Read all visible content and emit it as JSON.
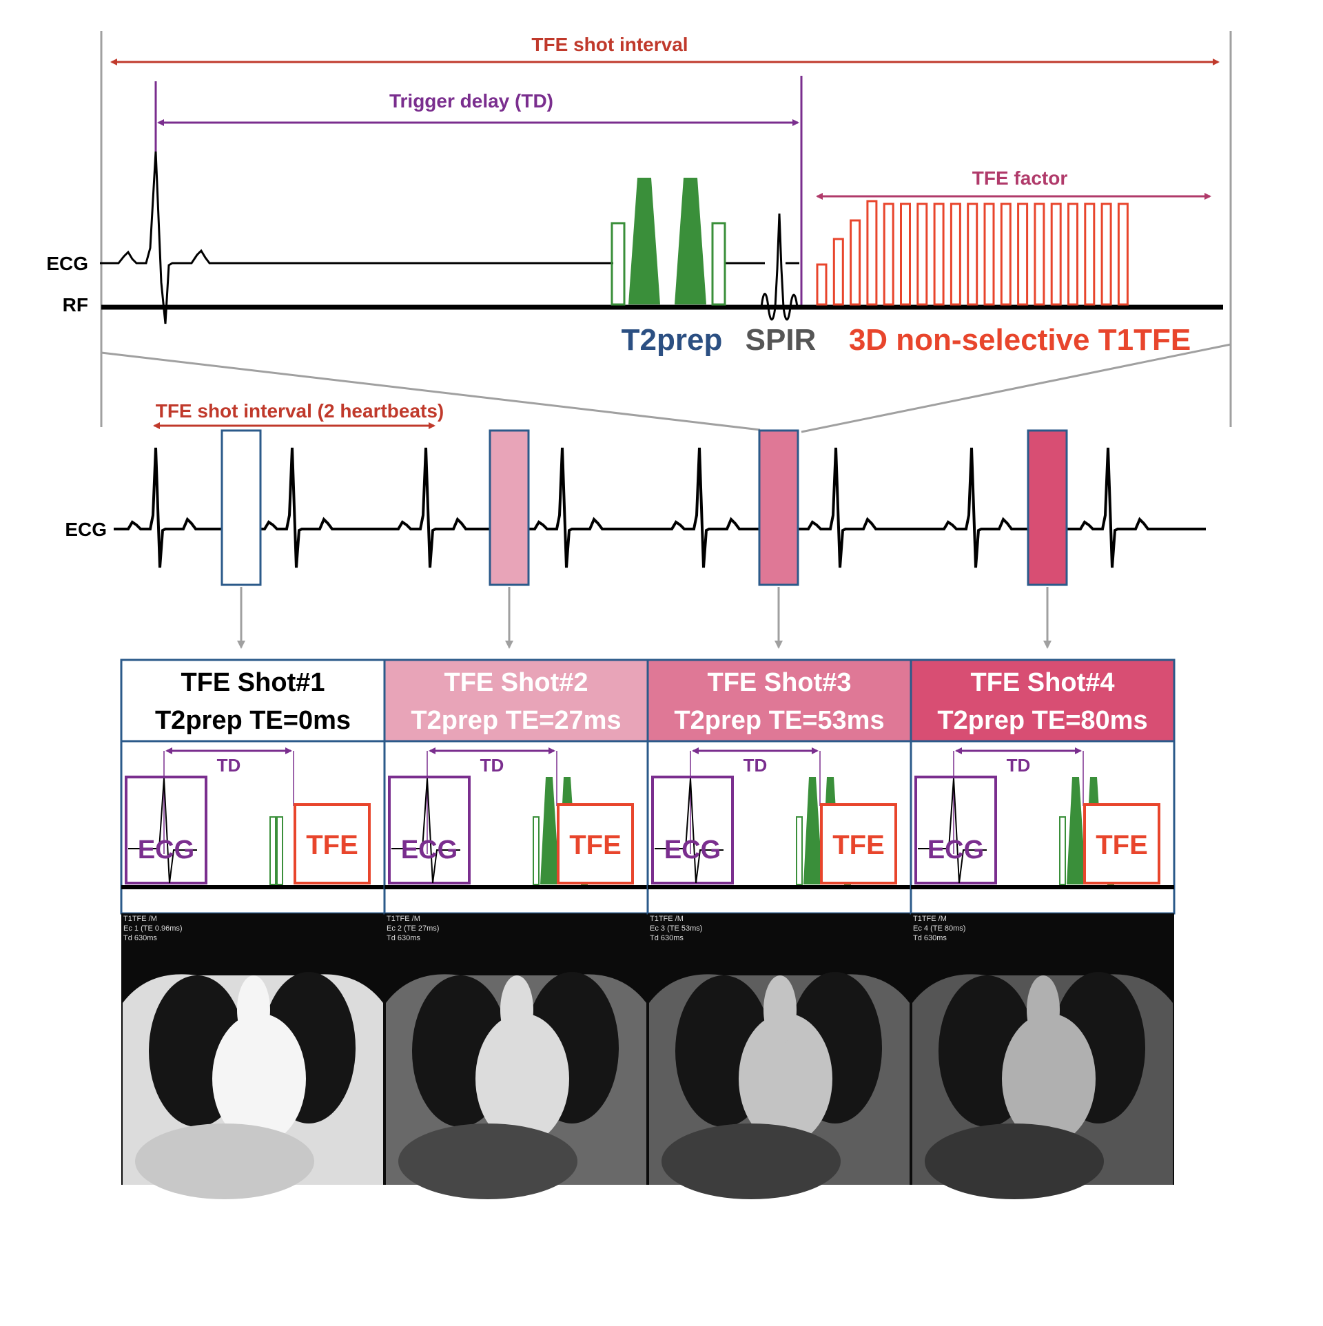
{
  "colors": {
    "interval_red": "#c0392b",
    "td_purple": "#7a2e8e",
    "factor_pink": "#b03a6a",
    "t2prep_green": "#3a8f3a",
    "t2prep_text": "#2b4f82",
    "spir_text": "#555555",
    "tfe_red": "#e8452c",
    "box_border": "#2b5a8a",
    "shot1_fill": "#ffffff",
    "shot2_fill": "#e8a4b8",
    "shot3_fill": "#df7896",
    "shot4_fill": "#d84e73",
    "gray_line": "#a0a0a0"
  },
  "top_diagram": {
    "shot_interval_label": "TFE shot interval",
    "trigger_delay_label": "Trigger delay (TD)",
    "tfe_factor_label": "TFE factor",
    "ecg_label": "ECG",
    "rf_label": "RF",
    "t2prep_label": "T2prep",
    "spir_label": "SPIR",
    "t1tfe_label": "3D non-selective T1TFE"
  },
  "middle_diagram": {
    "shot_interval_label": "TFE shot interval (2 heartbeats)",
    "ecg_label": "ECG"
  },
  "shots": [
    {
      "title": "TFE Shot#1",
      "subtitle": "T2prep TE=0ms",
      "td_label": "TD",
      "ecg_box_label": "ECG",
      "tfe_box_label": "TFE",
      "image_text": [
        "T1TFE    /M",
        "Ec 1 (TE 0.96ms)",
        "Td 630ms"
      ]
    },
    {
      "title": "TFE Shot#2",
      "subtitle": "T2prep TE=27ms",
      "td_label": "TD",
      "ecg_box_label": "ECG",
      "tfe_box_label": "TFE",
      "image_text": [
        "T1TFE    /M",
        "Ec 2 (TE 27ms)",
        "Td 630ms"
      ]
    },
    {
      "title": "TFE Shot#3",
      "subtitle": "T2prep TE=53ms",
      "td_label": "TD",
      "ecg_box_label": "ECG",
      "tfe_box_label": "TFE",
      "image_text": [
        "T1TFE    /M",
        "Ec 3 (TE 53ms)",
        "Td 630ms"
      ]
    },
    {
      "title": "TFE Shot#4",
      "subtitle": "T2prep TE=80ms",
      "td_label": "TD",
      "ecg_box_label": "ECG",
      "tfe_box_label": "TFE",
      "image_text": [
        "T1TFE    /M",
        "Ec 4 (TE 80ms)",
        "Td 630ms"
      ]
    }
  ]
}
